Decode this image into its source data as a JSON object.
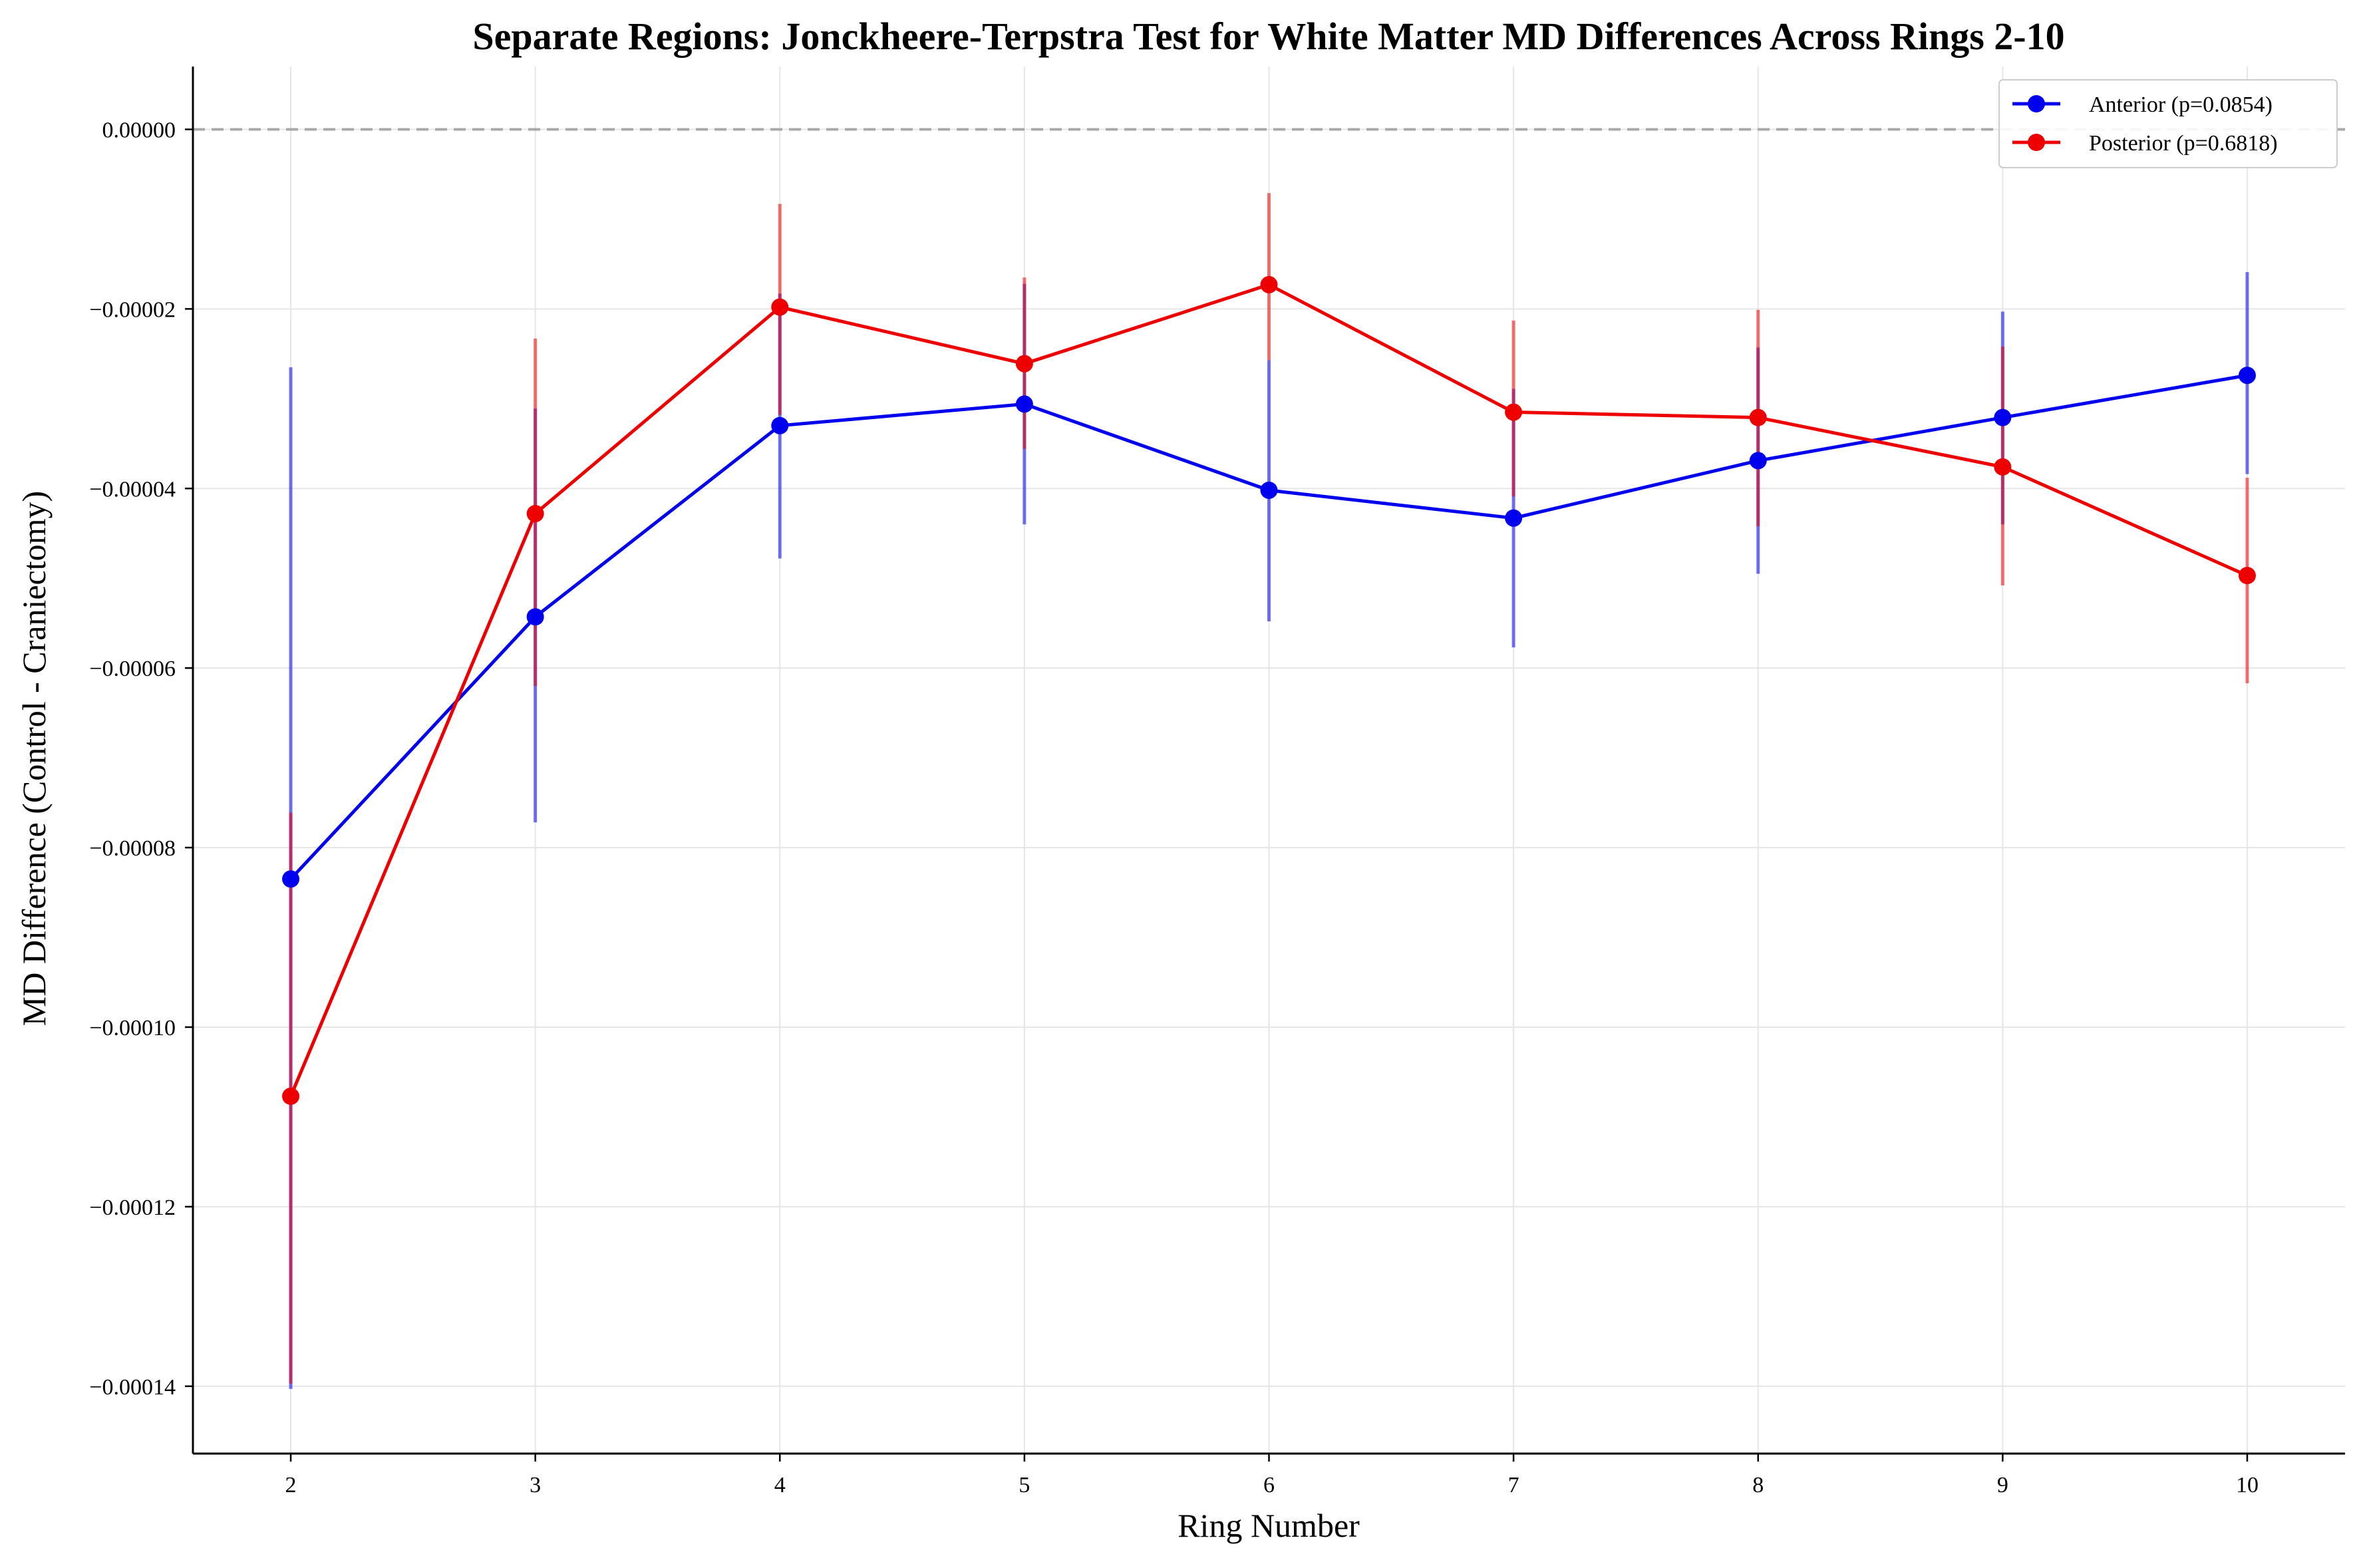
{
  "chart_data": {
    "type": "line",
    "title": "Separate Regions: Jonckheere-Terpstra Test for White Matter MD Differences Across Rings 2-10",
    "xlabel": "Ring Number",
    "ylabel": "MD Difference (Control - Craniectomy)",
    "x": [
      2,
      3,
      4,
      5,
      6,
      7,
      8,
      9,
      10
    ],
    "x_ticks": [
      "2",
      "3",
      "4",
      "5",
      "6",
      "7",
      "8",
      "9",
      "10"
    ],
    "y_ticks": [
      "0.00000",
      "−0.00002",
      "−0.00004",
      "−0.00006",
      "−0.00008",
      "−0.00010",
      "−0.00012",
      "−0.00014"
    ],
    "y_tick_values": [
      0,
      -2e-05,
      -4e-05,
      -6e-05,
      -8e-05,
      -0.0001,
      -0.00012,
      -0.00014
    ],
    "xlim": [
      1.6,
      10.4
    ],
    "ylim": [
      -0.0001475,
      7e-06
    ],
    "grid": true,
    "reference_line": 0,
    "legend_position": "top-right",
    "series": [
      {
        "name": "Anterior (p=0.0854)",
        "color": "#0000ee",
        "values": [
          -8.35e-05,
          -5.43e-05,
          -3.3e-05,
          -3.06e-05,
          -4.02e-05,
          -4.33e-05,
          -3.69e-05,
          -3.21e-05,
          -2.74e-05
        ],
        "err_low": [
          -0.0001403,
          -7.72e-05,
          -4.78e-05,
          -4.4e-05,
          -5.48e-05,
          -5.77e-05,
          -4.95e-05,
          -4.4e-05,
          -3.84e-05
        ],
        "err_high": [
          -2.65e-05,
          -3.11e-05,
          -1.83e-05,
          -1.72e-05,
          -2.57e-05,
          -2.89e-05,
          -2.43e-05,
          -2.03e-05,
          -1.59e-05
        ]
      },
      {
        "name": "Posterior (p=0.6818)",
        "color": "#ee0000",
        "values": [
          -0.0001077,
          -4.28e-05,
          -1.98e-05,
          -2.61e-05,
          -1.73e-05,
          -3.15e-05,
          -3.21e-05,
          -3.76e-05,
          -4.97e-05
        ],
        "err_low": [
          -0.0001397,
          -6.2e-05,
          -3.18e-05,
          -3.56e-05,
          -2.57e-05,
          -4.09e-05,
          -4.42e-05,
          -5.08e-05,
          -6.17e-05
        ],
        "err_high": [
          -7.61e-05,
          -2.33e-05,
          -8.3e-06,
          -1.65e-05,
          -7.1e-06,
          -2.13e-05,
          -2.01e-05,
          -2.42e-05,
          -3.88e-05
        ]
      }
    ]
  }
}
